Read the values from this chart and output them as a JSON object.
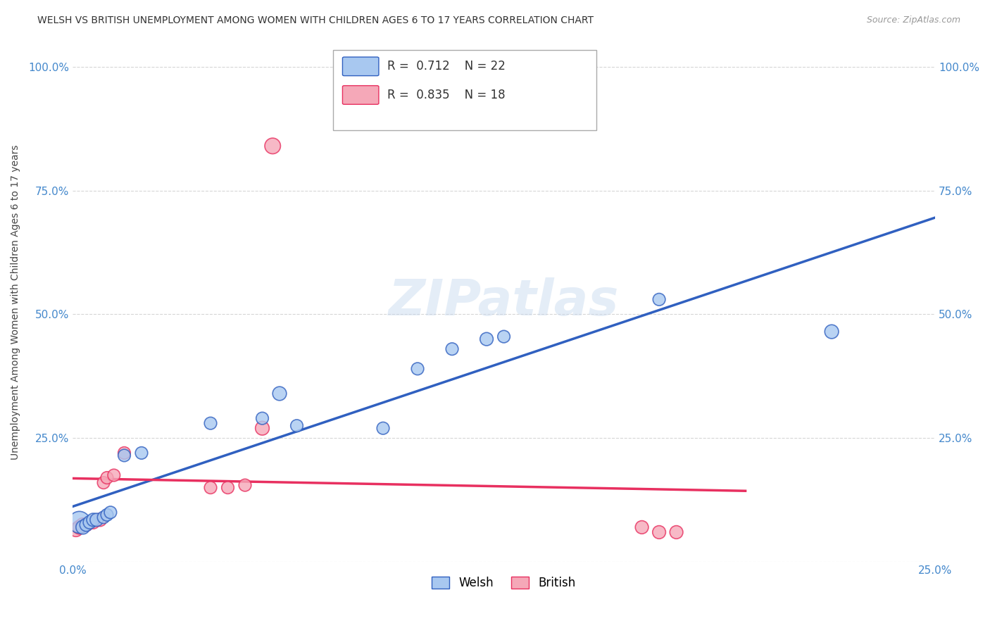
{
  "title": "WELSH VS BRITISH UNEMPLOYMENT AMONG WOMEN WITH CHILDREN AGES 6 TO 17 YEARS CORRELATION CHART",
  "source": "Source: ZipAtlas.com",
  "ylabel": "Unemployment Among Women with Children Ages 6 to 17 years",
  "xlim": [
    0.0,
    0.25
  ],
  "ylim": [
    0.0,
    1.05
  ],
  "xticks": [
    0.0,
    0.05,
    0.1,
    0.15,
    0.2,
    0.25
  ],
  "xticklabels": [
    "0.0%",
    "",
    "",
    "",
    "",
    "25.0%"
  ],
  "yticks": [
    0.0,
    0.25,
    0.5,
    0.75,
    1.0
  ],
  "yticklabels": [
    "",
    "25.0%",
    "50.0%",
    "75.0%",
    "100.0%"
  ],
  "welsh_R": "0.712",
  "welsh_N": "22",
  "british_R": "0.835",
  "british_N": "18",
  "welsh_color": "#A8C8F0",
  "british_color": "#F5A8B8",
  "welsh_line_color": "#3060C0",
  "british_line_color": "#E83060",
  "background_color": "#FFFFFF",
  "grid_color": "#CCCCCC",
  "watermark": "ZIPatlas",
  "welsh_x": [
    0.002,
    0.003,
    0.004,
    0.005,
    0.006,
    0.007,
    0.009,
    0.01,
    0.011,
    0.015,
    0.02,
    0.04,
    0.055,
    0.06,
    0.065,
    0.09,
    0.1,
    0.11,
    0.12,
    0.125,
    0.17,
    0.22
  ],
  "welsh_y": [
    0.08,
    0.07,
    0.075,
    0.08,
    0.085,
    0.085,
    0.09,
    0.095,
    0.1,
    0.215,
    0.22,
    0.28,
    0.29,
    0.34,
    0.275,
    0.27,
    0.39,
    0.43,
    0.45,
    0.455,
    0.53,
    0.465
  ],
  "welsh_size": [
    500,
    200,
    180,
    180,
    180,
    180,
    160,
    160,
    160,
    160,
    160,
    160,
    160,
    200,
    160,
    160,
    160,
    160,
    180,
    160,
    160,
    200
  ],
  "british_x": [
    0.001,
    0.002,
    0.003,
    0.004,
    0.006,
    0.008,
    0.009,
    0.01,
    0.012,
    0.015,
    0.04,
    0.045,
    0.05,
    0.055,
    0.058,
    0.165,
    0.17,
    0.175
  ],
  "british_y": [
    0.065,
    0.07,
    0.075,
    0.075,
    0.08,
    0.085,
    0.16,
    0.17,
    0.175,
    0.22,
    0.15,
    0.15,
    0.155,
    0.27,
    0.84,
    0.07,
    0.06,
    0.06
  ],
  "british_size": [
    200,
    200,
    200,
    180,
    180,
    180,
    160,
    160,
    160,
    160,
    160,
    160,
    160,
    200,
    260,
    180,
    180,
    180
  ]
}
